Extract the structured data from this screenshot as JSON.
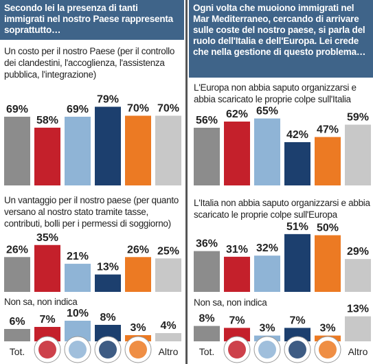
{
  "questions": [
    "Secondo lei la presenza di tanti immigrati nel nostro Paese rappresenta soprattutto…",
    "Ogni volta che muoiono immigrati nel Mar Mediterraneo, cercando di arrivare sulle coste del nostro paese, si parla del ruolo dell'Italia e dell'Europa. Lei crede che nella gestione di questo problema…"
  ],
  "categories": [
    "Tot.",
    null,
    null,
    null,
    null,
    "Altro"
  ],
  "colors": [
    "#8c8c8c",
    "#c4202b",
    "#8fb4d6",
    "#1c3f6e",
    "#ec7a23",
    "#c8c8c8"
  ],
  "chart_data": [
    {
      "type": "bar",
      "title": "Un costo per il nostro Paese (per il controllo dei clandestini, l'accoglienza, l'assistenza pubblica, l'integrazione)",
      "values": [
        69,
        58,
        69,
        79,
        70,
        70
      ],
      "value_labels": [
        "69%",
        "58%",
        "69%",
        "79%",
        "70%",
        "70%"
      ]
    },
    {
      "type": "bar",
      "title": "Un vantaggio per il nostro paese (per quanto versano al nostro stato tramite tasse, contributi, bolli per i permessi di soggiorno)",
      "values": [
        26,
        35,
        21,
        13,
        26,
        25
      ],
      "value_labels": [
        "26%",
        "35%",
        "21%",
        "13%",
        "26%",
        "25%"
      ]
    },
    {
      "type": "bar",
      "title": "Non sa, non indica",
      "values": [
        6,
        7,
        10,
        8,
        3,
        4
      ],
      "value_labels": [
        "6%",
        "7%",
        "10%",
        "8%",
        "3%",
        "4%"
      ]
    },
    {
      "type": "bar",
      "title": "L'Europa non abbia saputo organizzarsi e abbia scaricato le proprie colpe sull'Italia",
      "values": [
        56,
        62,
        65,
        42,
        47,
        59
      ],
      "value_labels": [
        "56%",
        "62%",
        "65%",
        "42%",
        "47%",
        "59%"
      ]
    },
    {
      "type": "bar",
      "title": "L'Italia non abbia saputo organizzarsi e abbia scaricato le proprie colpe sull'Europa",
      "values": [
        36,
        31,
        32,
        51,
        50,
        29
      ],
      "value_labels": [
        "36%",
        "31%",
        "32%",
        "51%",
        "50%",
        "29%"
      ]
    },
    {
      "type": "bar",
      "title": "Non sa, non indica",
      "values": [
        8,
        7,
        3,
        7,
        3,
        13
      ],
      "value_labels": [
        "8%",
        "7%",
        "3%",
        "7%",
        "3%",
        "13%"
      ]
    }
  ]
}
